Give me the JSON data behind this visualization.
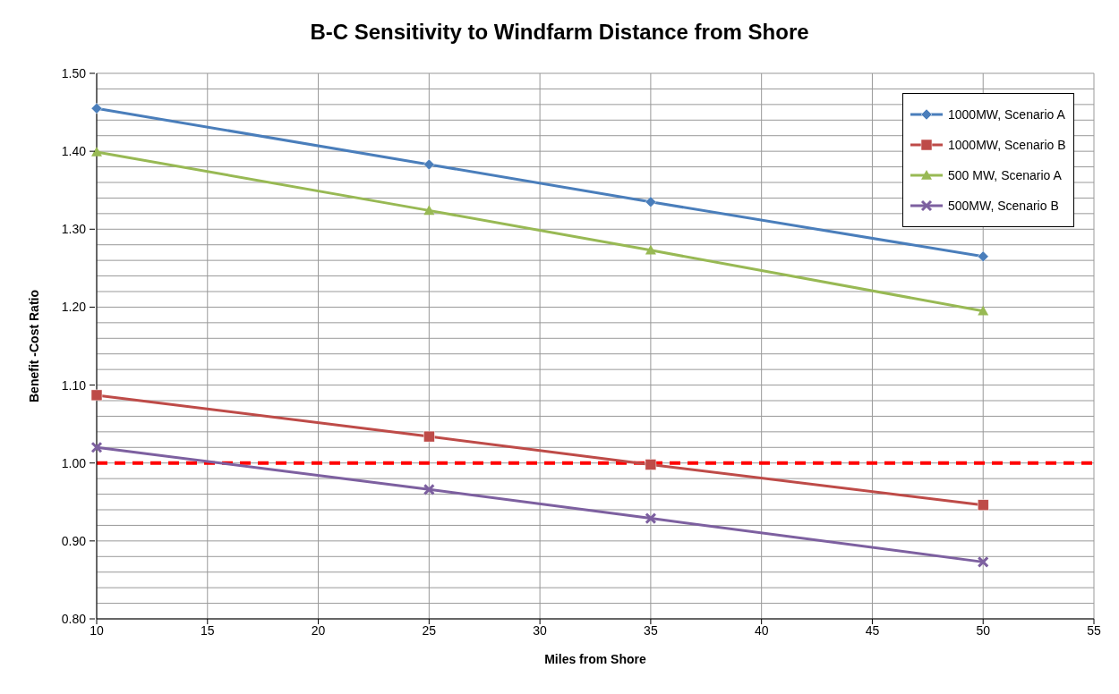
{
  "chart_data": {
    "type": "line",
    "title": "B-C Sensitivity to Windfarm Distance from Shore",
    "xlabel": "Miles from Shore",
    "ylabel": "Benefit -Cost Ratio",
    "x": [
      10,
      25,
      35,
      50
    ],
    "series": [
      {
        "name": "1000MW, Scenario A",
        "color": "#4a7ebb",
        "values": [
          1.455,
          1.383,
          1.335,
          1.265
        ],
        "marker": "diamond"
      },
      {
        "name": "1000MW, Scenario B",
        "color": "#be4b48",
        "values": [
          1.087,
          1.034,
          0.998,
          0.946
        ],
        "marker": "square"
      },
      {
        "name": "500 MW, Scenario A",
        "color": "#98b954",
        "values": [
          1.399,
          1.324,
          1.273,
          1.195
        ],
        "marker": "triangle"
      },
      {
        "name": "500MW, Scenario B",
        "color": "#7d60a0",
        "values": [
          1.02,
          0.966,
          0.929,
          0.873
        ],
        "marker": "cross"
      }
    ],
    "xlim": [
      10,
      55
    ],
    "xticks": [
      10,
      15,
      20,
      25,
      30,
      35,
      40,
      45,
      50,
      55
    ],
    "ylim": [
      0.8,
      1.5
    ],
    "yticks": [
      {
        "value": 0.8,
        "label": "0.80"
      },
      {
        "value": 0.82,
        "label": null
      },
      {
        "value": 0.84,
        "label": null
      },
      {
        "value": 0.86,
        "label": null
      },
      {
        "value": 0.88,
        "label": null
      },
      {
        "value": 0.9,
        "label": "0.90"
      },
      {
        "value": 0.92,
        "label": null
      },
      {
        "value": 0.94,
        "label": null
      },
      {
        "value": 0.96,
        "label": null
      },
      {
        "value": 0.98,
        "label": null
      },
      {
        "value": 1.0,
        "label": "1.00"
      },
      {
        "value": 1.02,
        "label": null
      },
      {
        "value": 1.04,
        "label": null
      },
      {
        "value": 1.06,
        "label": null
      },
      {
        "value": 1.08,
        "label": null
      },
      {
        "value": 1.1,
        "label": "1.10"
      },
      {
        "value": 1.12,
        "label": null
      },
      {
        "value": 1.14,
        "label": null
      },
      {
        "value": 1.16,
        "label": null
      },
      {
        "value": 1.18,
        "label": null
      },
      {
        "value": 1.2,
        "label": "1.20"
      },
      {
        "value": 1.22,
        "label": null
      },
      {
        "value": 1.24,
        "label": null
      },
      {
        "value": 1.26,
        "label": null
      },
      {
        "value": 1.28,
        "label": null
      },
      {
        "value": 1.3,
        "label": "1.30"
      },
      {
        "value": 1.32,
        "label": null
      },
      {
        "value": 1.34,
        "label": null
      },
      {
        "value": 1.36,
        "label": null
      },
      {
        "value": 1.38,
        "label": null
      },
      {
        "value": 1.4,
        "label": "1.40"
      },
      {
        "value": 1.42,
        "label": null
      },
      {
        "value": 1.44,
        "label": null
      },
      {
        "value": 1.46,
        "label": null
      },
      {
        "value": 1.48,
        "label": null
      },
      {
        "value": 1.5,
        "label": "1.50"
      }
    ],
    "ref_lines": [
      {
        "axis": "y",
        "value": 1.0,
        "label": null,
        "color": "#ff0000",
        "line_style": "dashed"
      }
    ],
    "grid": true,
    "legend": "top right",
    "line_style": "solid"
  }
}
